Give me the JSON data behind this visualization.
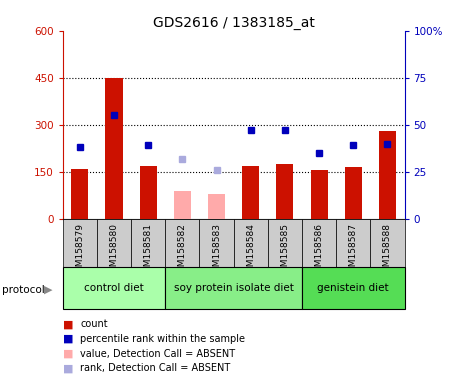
{
  "title": "GDS2616 / 1383185_at",
  "samples": [
    "GSM158579",
    "GSM158580",
    "GSM158581",
    "GSM158582",
    "GSM158583",
    "GSM158584",
    "GSM158585",
    "GSM158586",
    "GSM158587",
    "GSM158588"
  ],
  "counts": [
    160,
    448,
    168,
    null,
    null,
    170,
    175,
    155,
    165,
    280
  ],
  "counts_absent": [
    null,
    null,
    null,
    88,
    78,
    null,
    null,
    null,
    null,
    null
  ],
  "percentile_ranks_left": [
    230,
    330,
    235,
    null,
    null,
    285,
    285,
    210,
    235,
    240
  ],
  "percentile_ranks_absent_left": [
    null,
    null,
    null,
    192,
    155,
    null,
    null,
    null,
    null,
    null
  ],
  "groups": [
    {
      "label": "control diet",
      "start": 0,
      "end": 3,
      "color": "#aaffaa"
    },
    {
      "label": "soy protein isolate diet",
      "start": 3,
      "end": 7,
      "color": "#88ee88"
    },
    {
      "label": "genistein diet",
      "start": 7,
      "end": 10,
      "color": "#55dd55"
    }
  ],
  "ylim_left": [
    0,
    600
  ],
  "ylim_right": [
    0,
    100
  ],
  "yticks_left": [
    0,
    150,
    300,
    450,
    600
  ],
  "yticks_right": [
    0,
    25,
    50,
    75,
    100
  ],
  "ytick_right_labels": [
    "0",
    "25",
    "50",
    "75",
    "100%"
  ],
  "bar_width": 0.5,
  "count_color": "#cc1100",
  "count_absent_color": "#ffaaaa",
  "rank_color": "#0000bb",
  "rank_absent_color": "#aaaadd",
  "plot_bg": "#ffffff",
  "sample_box_color": "#cccccc"
}
